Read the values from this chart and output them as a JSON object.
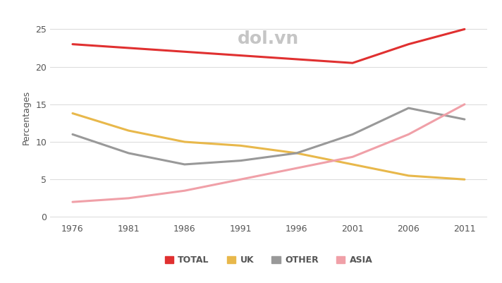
{
  "years": [
    1976,
    1981,
    1986,
    1991,
    1996,
    2001,
    2006,
    2011
  ],
  "series": {
    "TOTAL": {
      "values": [
        23,
        22.5,
        22,
        21.5,
        21,
        20.5,
        23,
        25
      ],
      "color": "#e03030",
      "linewidth": 2.2
    },
    "UK": {
      "values": [
        13.8,
        11.5,
        10,
        9.5,
        8.5,
        7,
        5.5,
        5
      ],
      "color": "#e8b84b",
      "linewidth": 2.2
    },
    "OTHER": {
      "values": [
        11,
        8.5,
        7,
        7.5,
        8.5,
        11,
        14.5,
        13
      ],
      "color": "#999999",
      "linewidth": 2.2
    },
    "ASIA": {
      "values": [
        2,
        2.5,
        3.5,
        5,
        6.5,
        8,
        11,
        15
      ],
      "color": "#f0a0a8",
      "linewidth": 2.2
    }
  },
  "ylabel": "Percentages",
  "yticks": [
    0,
    5,
    10,
    15,
    20,
    25
  ],
  "ylim": [
    -0.5,
    27
  ],
  "xlim": [
    1974,
    2013
  ],
  "background_color": "#ffffff",
  "grid_color": "#dddddd",
  "legend_order": [
    "TOTAL",
    "UK",
    "OTHER",
    "ASIA"
  ],
  "watermark_text": "dol.vn",
  "legend_fontsize": 9,
  "axis_fontsize": 9,
  "tick_color": "#555555",
  "ylabel_color": "#555555"
}
